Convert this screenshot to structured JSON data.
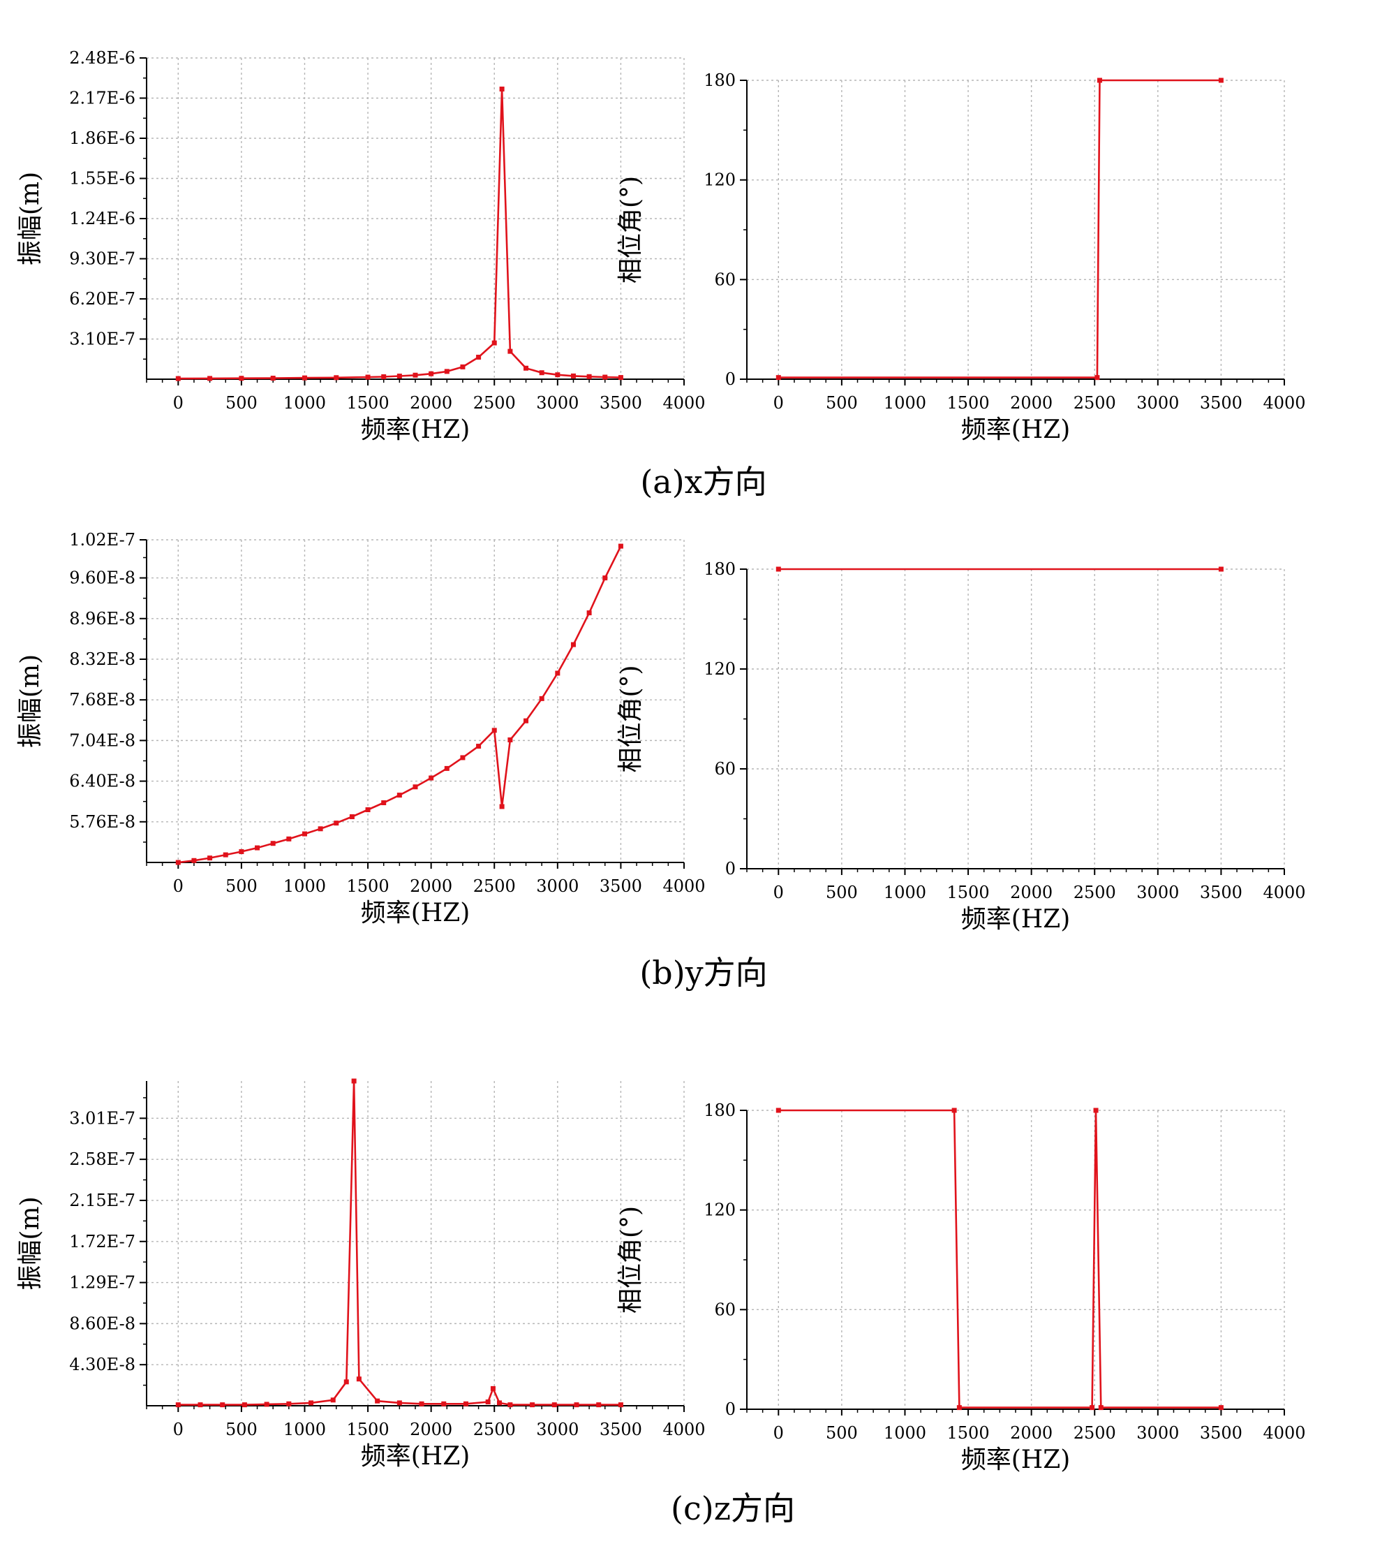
{
  "colors": {
    "series": "#e0121b",
    "grid": "#b5b5b5",
    "axis": "#000000"
  },
  "chart_data": [
    {
      "type": "line",
      "panel": "x-amplitude",
      "xlabel": "频率(HZ)",
      "ylabel": "振幅(m)",
      "xlim": [
        -250,
        4000
      ],
      "ylim": [
        0,
        2.48e-06
      ],
      "x_ticks": [
        0,
        500,
        1000,
        1500,
        2000,
        2500,
        3000,
        3500,
        4000
      ],
      "x_tick_labels": [
        "0",
        "500",
        "1000",
        "1500",
        "2000",
        "2500",
        "3000",
        "3500",
        "4000"
      ],
      "y_ticks": [
        3.1e-07,
        6.2e-07,
        9.3e-07,
        1.24e-06,
        1.55e-06,
        1.86e-06,
        2.17e-06,
        2.48e-06
      ],
      "y_tick_labels": [
        "3.10E-7",
        "6.20E-7",
        "9.30E-7",
        "1.24E-6",
        "1.55E-6",
        "1.86E-6",
        "2.17E-6",
        "2.48E-6"
      ],
      "series": [
        {
          "name": "x-amplitude",
          "x": [
            0,
            250,
            500,
            750,
            1000,
            1250,
            1500,
            1625,
            1750,
            1875,
            2000,
            2125,
            2250,
            2375,
            2500,
            2560,
            2625,
            2750,
            2875,
            3000,
            3125,
            3250,
            3375,
            3500
          ],
          "values": [
            5e-09,
            6e-09,
            7e-09,
            8e-09,
            1e-08,
            1.2e-08,
            1.6e-08,
            1.9e-08,
            2.4e-08,
            3.1e-08,
            4.2e-08,
            6e-08,
            9.5e-08,
            1.7e-07,
            2.8e-07,
            2.24e-06,
            2.15e-07,
            8.5e-08,
            5e-08,
            3.4e-08,
            2.5e-08,
            2e-08,
            1.6e-08,
            1.3e-08
          ]
        }
      ]
    },
    {
      "type": "line",
      "panel": "x-phase",
      "xlabel": "频率(HZ)",
      "ylabel": "相位角(°)",
      "xlim": [
        -250,
        4000
      ],
      "ylim": [
        0,
        180
      ],
      "x_ticks": [
        0,
        500,
        1000,
        1500,
        2000,
        2500,
        3000,
        3500,
        4000
      ],
      "x_tick_labels": [
        "0",
        "500",
        "1000",
        "1500",
        "2000",
        "2500",
        "3000",
        "3500",
        "4000"
      ],
      "y_ticks": [
        0,
        60,
        120,
        180
      ],
      "y_tick_labels": [
        "0",
        "60",
        "120",
        "180"
      ],
      "series": [
        {
          "name": "x-phase",
          "x": [
            0,
            2520,
            2540,
            3500
          ],
          "values": [
            1,
            1,
            180,
            180
          ]
        }
      ]
    },
    {
      "type": "line",
      "panel": "y-amplitude",
      "xlabel": "频率(HZ)",
      "ylabel": "振幅(m)",
      "xlim": [
        -250,
        4000
      ],
      "ylim": [
        5.12e-08,
        1.02e-07
      ],
      "x_ticks": [
        0,
        500,
        1000,
        1500,
        2000,
        2500,
        3000,
        3500,
        4000
      ],
      "x_tick_labels": [
        "0",
        "500",
        "1000",
        "1500",
        "2000",
        "2500",
        "3000",
        "3500",
        "4000"
      ],
      "y_ticks": [
        5.76e-08,
        6.4e-08,
        7.04e-08,
        7.68e-08,
        8.32e-08,
        8.96e-08,
        9.6e-08,
        1.02e-07
      ],
      "y_tick_labels": [
        "5.76E-8",
        "6.40E-8",
        "7.04E-8",
        "7.68E-8",
        "8.32E-8",
        "8.96E-8",
        "9.60E-8",
        "1.02E-7"
      ],
      "series": [
        {
          "name": "y-amplitude",
          "x": [
            0,
            125,
            250,
            375,
            500,
            625,
            750,
            875,
            1000,
            1125,
            1250,
            1375,
            1500,
            1625,
            1750,
            1875,
            2000,
            2125,
            2250,
            2375,
            2500,
            2560,
            2625,
            2750,
            2875,
            3000,
            3125,
            3250,
            3375,
            3500
          ],
          "values": [
            5.12e-08,
            5.15e-08,
            5.19e-08,
            5.24e-08,
            5.29e-08,
            5.35e-08,
            5.42e-08,
            5.49e-08,
            5.57e-08,
            5.65e-08,
            5.74e-08,
            5.84e-08,
            5.95e-08,
            6.06e-08,
            6.18e-08,
            6.31e-08,
            6.45e-08,
            6.6e-08,
            6.77e-08,
            6.95e-08,
            7.2e-08,
            6e-08,
            7.05e-08,
            7.35e-08,
            7.7e-08,
            8.1e-08,
            8.55e-08,
            9.05e-08,
            9.6e-08,
            1.01e-07
          ]
        }
      ]
    },
    {
      "type": "line",
      "panel": "y-phase",
      "xlabel": "频率(HZ)",
      "ylabel": "相位角(°)",
      "xlim": [
        -250,
        4000
      ],
      "ylim": [
        0,
        180
      ],
      "x_ticks": [
        0,
        500,
        1000,
        1500,
        2000,
        2500,
        3000,
        3500,
        4000
      ],
      "x_tick_labels": [
        "0",
        "500",
        "1000",
        "1500",
        "2000",
        "2500",
        "3000",
        "3500",
        "4000"
      ],
      "y_ticks": [
        0,
        60,
        120,
        180
      ],
      "y_tick_labels": [
        "0",
        "60",
        "120",
        "180"
      ],
      "series": [
        {
          "name": "y-phase",
          "x": [
            0,
            3500
          ],
          "values": [
            180,
            180
          ]
        }
      ]
    },
    {
      "type": "line",
      "panel": "z-amplitude",
      "xlabel": "频率(HZ)",
      "ylabel": "振幅(m)",
      "xlim": [
        -250,
        4000
      ],
      "ylim": [
        0,
        3.4e-07
      ],
      "x_ticks": [
        0,
        500,
        1000,
        1500,
        2000,
        2500,
        3000,
        3500,
        4000
      ],
      "x_tick_labels": [
        "0",
        "500",
        "1000",
        "1500",
        "2000",
        "2500",
        "3000",
        "3500",
        "4000"
      ],
      "y_ticks": [
        4.3e-08,
        8.6e-08,
        1.29e-07,
        1.72e-07,
        2.15e-07,
        2.58e-07,
        3.01e-07
      ],
      "y_tick_labels": [
        "4.30E-8",
        "8.60E-8",
        "1.29E-7",
        "1.72E-7",
        "2.15E-7",
        "2.58E-7",
        "3.01E-7"
      ],
      "series": [
        {
          "name": "z-amplitude",
          "x": [
            0,
            175,
            350,
            525,
            700,
            875,
            1050,
            1225,
            1330,
            1390,
            1430,
            1575,
            1750,
            1925,
            2100,
            2275,
            2450,
            2490,
            2540,
            2625,
            2800,
            2975,
            3150,
            3325,
            3500
          ],
          "values": [
            1e-09,
            1e-09,
            1e-09,
            1e-09,
            1.5e-09,
            2e-09,
            3e-09,
            6e-09,
            2.5e-08,
            3.4e-07,
            2.8e-08,
            5e-09,
            3e-09,
            2e-09,
            2e-09,
            2e-09,
            4e-09,
            1.8e-08,
            3e-09,
            1e-09,
            1e-09,
            1e-09,
            1e-09,
            1e-09,
            1e-09
          ]
        }
      ]
    },
    {
      "type": "line",
      "panel": "z-phase",
      "xlabel": "频率(HZ)",
      "ylabel": "相位角(°)",
      "xlim": [
        -250,
        4000
      ],
      "ylim": [
        0,
        180
      ],
      "x_ticks": [
        0,
        500,
        1000,
        1500,
        2000,
        2500,
        3000,
        3500,
        4000
      ],
      "x_tick_labels": [
        "0",
        "500",
        "1000",
        "1500",
        "2000",
        "2500",
        "3000",
        "3500",
        "4000"
      ],
      "y_ticks": [
        0,
        60,
        120,
        180
      ],
      "y_tick_labels": [
        "0",
        "60",
        "120",
        "180"
      ],
      "series": [
        {
          "name": "z-phase",
          "x": [
            0,
            1390,
            1430,
            2480,
            2510,
            2550,
            3500
          ],
          "values": [
            180,
            180,
            1,
            1,
            180,
            1,
            1
          ]
        }
      ]
    }
  ],
  "captions": [
    "(a)x方向",
    "(b)y方向",
    "(c)z方向"
  ]
}
